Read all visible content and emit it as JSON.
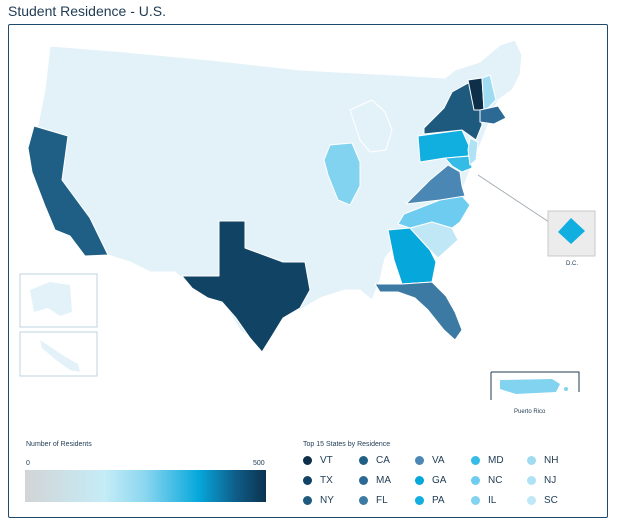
{
  "title": "Student Residence - U.S.",
  "legend": {
    "scale_title": "Number of Residents",
    "scale_min": "0",
    "scale_max": "500",
    "states_title": "Top 15 States by Residence"
  },
  "inset_labels": {
    "dc": "D.C.",
    "pr": "Puerto Rico"
  },
  "top_states": [
    {
      "code": "VT",
      "color": "#0d2f4a"
    },
    {
      "code": "TX",
      "color": "#104364"
    },
    {
      "code": "NY",
      "color": "#1d5a7e"
    },
    {
      "code": "CA",
      "color": "#1f5f86"
    },
    {
      "code": "MA",
      "color": "#2c6a95"
    },
    {
      "code": "FL",
      "color": "#3d7aa3"
    },
    {
      "code": "VA",
      "color": "#4a87b5"
    },
    {
      "code": "GA",
      "color": "#06a8dc"
    },
    {
      "code": "PA",
      "color": "#11aee0"
    },
    {
      "code": "MD",
      "color": "#34bbe6"
    },
    {
      "code": "NC",
      "color": "#6dccef"
    },
    {
      "code": "IL",
      "color": "#82d3ef"
    },
    {
      "code": "NH",
      "color": "#9fdcf2"
    },
    {
      "code": "NJ",
      "color": "#aee2f4"
    },
    {
      "code": "SC",
      "color": "#bfe7f6"
    }
  ],
  "colors": {
    "base": "#e3f2f9",
    "border": "#ffffff",
    "frame": "#1f4a6b"
  }
}
